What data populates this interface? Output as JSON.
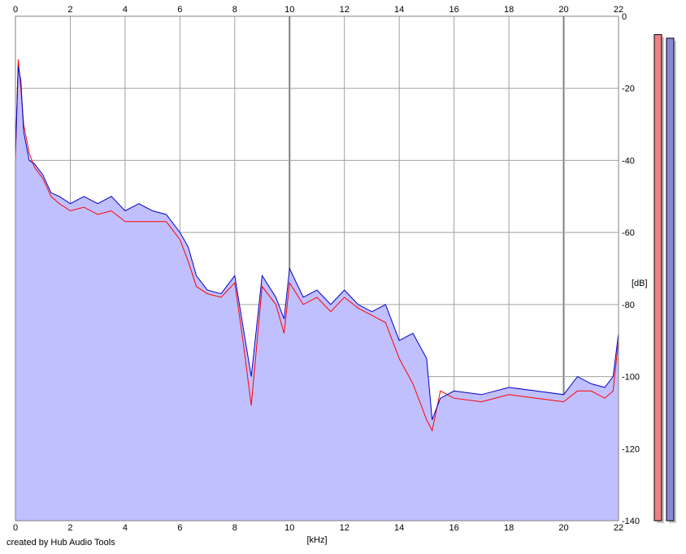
{
  "app": {
    "credit": "created by Hub Audio Tools"
  },
  "chart_data": {
    "type": "line",
    "xlabel": "[kHz]",
    "ylabel": "[dB]",
    "xlim": [
      0,
      22
    ],
    "ylim": [
      -140,
      0
    ],
    "x_ticks": [
      "0",
      "2",
      "4",
      "6",
      "8",
      "10",
      "12",
      "14",
      "16",
      "18",
      "20",
      "22"
    ],
    "y_ticks": [
      "0",
      "-20",
      "-40",
      "-60",
      "-80",
      "-100",
      "-120",
      "-140"
    ],
    "grid": true,
    "colors": {
      "fill": "#c0c0ff",
      "left_channel": "#ff0000",
      "right_channel": "#0000c8",
      "grid": "#a0a0a0",
      "grid_major": "#808080",
      "meter_left": "#f08080",
      "meter_right": "#8888d8"
    },
    "series": [
      {
        "color": "#ff0000",
        "x": [
          0,
          0.1,
          0.2,
          0.3,
          0.5,
          0.7,
          1,
          1.3,
          1.6,
          2,
          2.5,
          3,
          3.5,
          4,
          4.5,
          5,
          5.5,
          6,
          6.3,
          6.6,
          7,
          7.5,
          8,
          8.3,
          8.6,
          9,
          9.5,
          9.8,
          10,
          10.5,
          11,
          11.5,
          12,
          12.5,
          13,
          13.5,
          14,
          14.5,
          15,
          15.2,
          15.5,
          16,
          17,
          18,
          19,
          20,
          20.5,
          21,
          21.5,
          21.8,
          22
        ],
        "values": [
          -40,
          -12,
          -20,
          -30,
          -38,
          -42,
          -45,
          -50,
          -52,
          -54,
          -53,
          -55,
          -54,
          -57,
          -57,
          -57,
          -57,
          -62,
          -68,
          -75,
          -77,
          -78,
          -74,
          -90,
          -108,
          -75,
          -80,
          -88,
          -74,
          -80,
          -78,
          -82,
          -78,
          -81,
          -83,
          -85,
          -95,
          -102,
          -112,
          -115,
          -104,
          -106,
          -107,
          -105,
          -106,
          -107,
          -104,
          -104,
          -106,
          -104,
          -90
        ]
      },
      {
        "color": "#0000c8",
        "x": [
          0,
          0.1,
          0.2,
          0.3,
          0.5,
          0.7,
          1,
          1.3,
          1.6,
          2,
          2.5,
          3,
          3.5,
          4,
          4.5,
          5,
          5.5,
          6,
          6.3,
          6.6,
          7,
          7.5,
          8,
          8.3,
          8.6,
          9,
          9.5,
          9.8,
          10,
          10.5,
          11,
          11.5,
          12,
          12.5,
          13,
          13.5,
          14,
          14.5,
          15,
          15.2,
          15.5,
          16,
          17,
          18,
          19,
          20,
          20.5,
          21,
          21.5,
          21.8,
          22
        ],
        "values": [
          -38,
          -14,
          -18,
          -32,
          -40,
          -41,
          -44,
          -49,
          -50,
          -52,
          -50,
          -52,
          -50,
          -54,
          -52,
          -54,
          -55,
          -60,
          -64,
          -72,
          -76,
          -77,
          -72,
          -86,
          -100,
          -72,
          -78,
          -84,
          -70,
          -78,
          -76,
          -80,
          -76,
          -80,
          -82,
          -80,
          -90,
          -88,
          -95,
          -112,
          -106,
          -104,
          -105,
          -103,
          -104,
          -105,
          -100,
          -102,
          -103,
          -100,
          -88
        ]
      }
    ],
    "level_meters": [
      {
        "channel": "left",
        "value_db": -4
      },
      {
        "channel": "right",
        "value_db": -5
      }
    ]
  }
}
